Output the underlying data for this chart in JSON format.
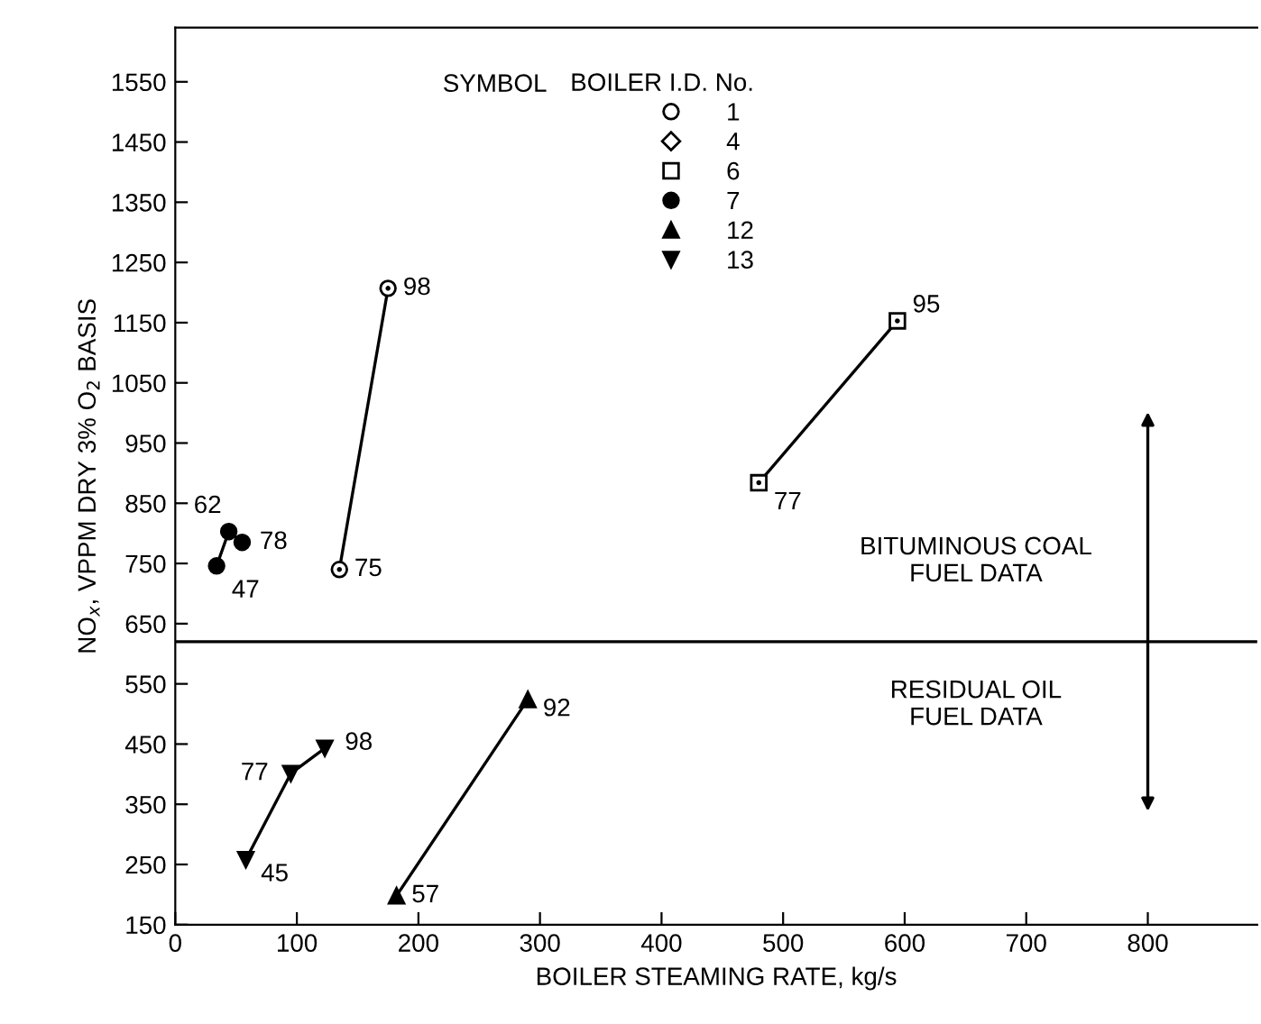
{
  "chart_data": {
    "type": "line",
    "xlabel": "BOILER STEAMING RATE, kg/s",
    "ylabel": "NO$_{x}$, VPPM DRY 3% O$_{2}$ BASIS",
    "legend_title": "BOILER I.D. No.",
    "legend": "top",
    "xlim": [
      0,
      890
    ],
    "xticks": [
      0,
      100,
      200,
      300,
      400,
      500,
      600,
      700,
      800
    ],
    "ylim": [
      150,
      1640
    ],
    "yticks": [
      150,
      250,
      350,
      450,
      550,
      650,
      750,
      850,
      950,
      1050,
      1150,
      1250,
      1350,
      1450,
      1550
    ],
    "grid": false,
    "series": [
      {
        "name": "1",
        "color": "#000000",
        "marker": "circle_dot",
        "x": [
          135,
          175
        ],
        "values": [
          740,
          1207
        ]
      },
      {
        "name": "4",
        "color": "#000000",
        "marker": "diamond_dot"
      },
      {
        "name": "6",
        "color": "#000000",
        "marker": "square_dot",
        "x": [
          480,
          594
        ],
        "values": [
          884,
          1153
        ]
      },
      {
        "name": "7",
        "color": "#000000",
        "marker": "circle",
        "x": [
          34,
          44,
          55
        ],
        "values": [
          746,
          803,
          785
        ]
      },
      {
        "name": "12",
        "color": "#000000",
        "marker": "triangle",
        "x": [
          182,
          290
        ],
        "values": [
          198,
          524
        ]
      },
      {
        "name": "13",
        "color": "#000000",
        "marker": "triangle_down",
        "x": [
          58,
          95,
          123
        ],
        "values": [
          258,
          401,
          443
        ]
      }
    ],
    "ref_lines": [
      {
        "axis": "y",
        "value": 620,
        "color": "#000000",
        "line_style": "solid"
      }
    ],
    "annotations": [
      {
        "text": "SYMBOL"
      },
      {
        "text": "BITUMINOUS COAL\nFUEL DATA"
      },
      {
        "text": "RESIDUAL OIL\nFUEL DATA"
      },
      {
        "text": "75",
        "x": 135,
        "y": 740
      },
      {
        "text": "98",
        "x": 175,
        "y": 1207
      },
      {
        "text": "77",
        "x": 480,
        "y": 884
      },
      {
        "text": "95",
        "x": 594,
        "y": 1153
      },
      {
        "text": "47",
        "x": 34,
        "y": 746
      },
      {
        "text": "62",
        "x": 44,
        "y": 803
      },
      {
        "text": "78",
        "x": 55,
        "y": 785
      },
      {
        "text": "57",
        "x": 182,
        "y": 198
      },
      {
        "text": "92",
        "x": 290,
        "y": 524
      },
      {
        "text": "45",
        "x": 58,
        "y": 258
      },
      {
        "text": "77",
        "x": 95,
        "y": 401
      },
      {
        "text": "98",
        "x": 123,
        "y": 443
      }
    ]
  }
}
